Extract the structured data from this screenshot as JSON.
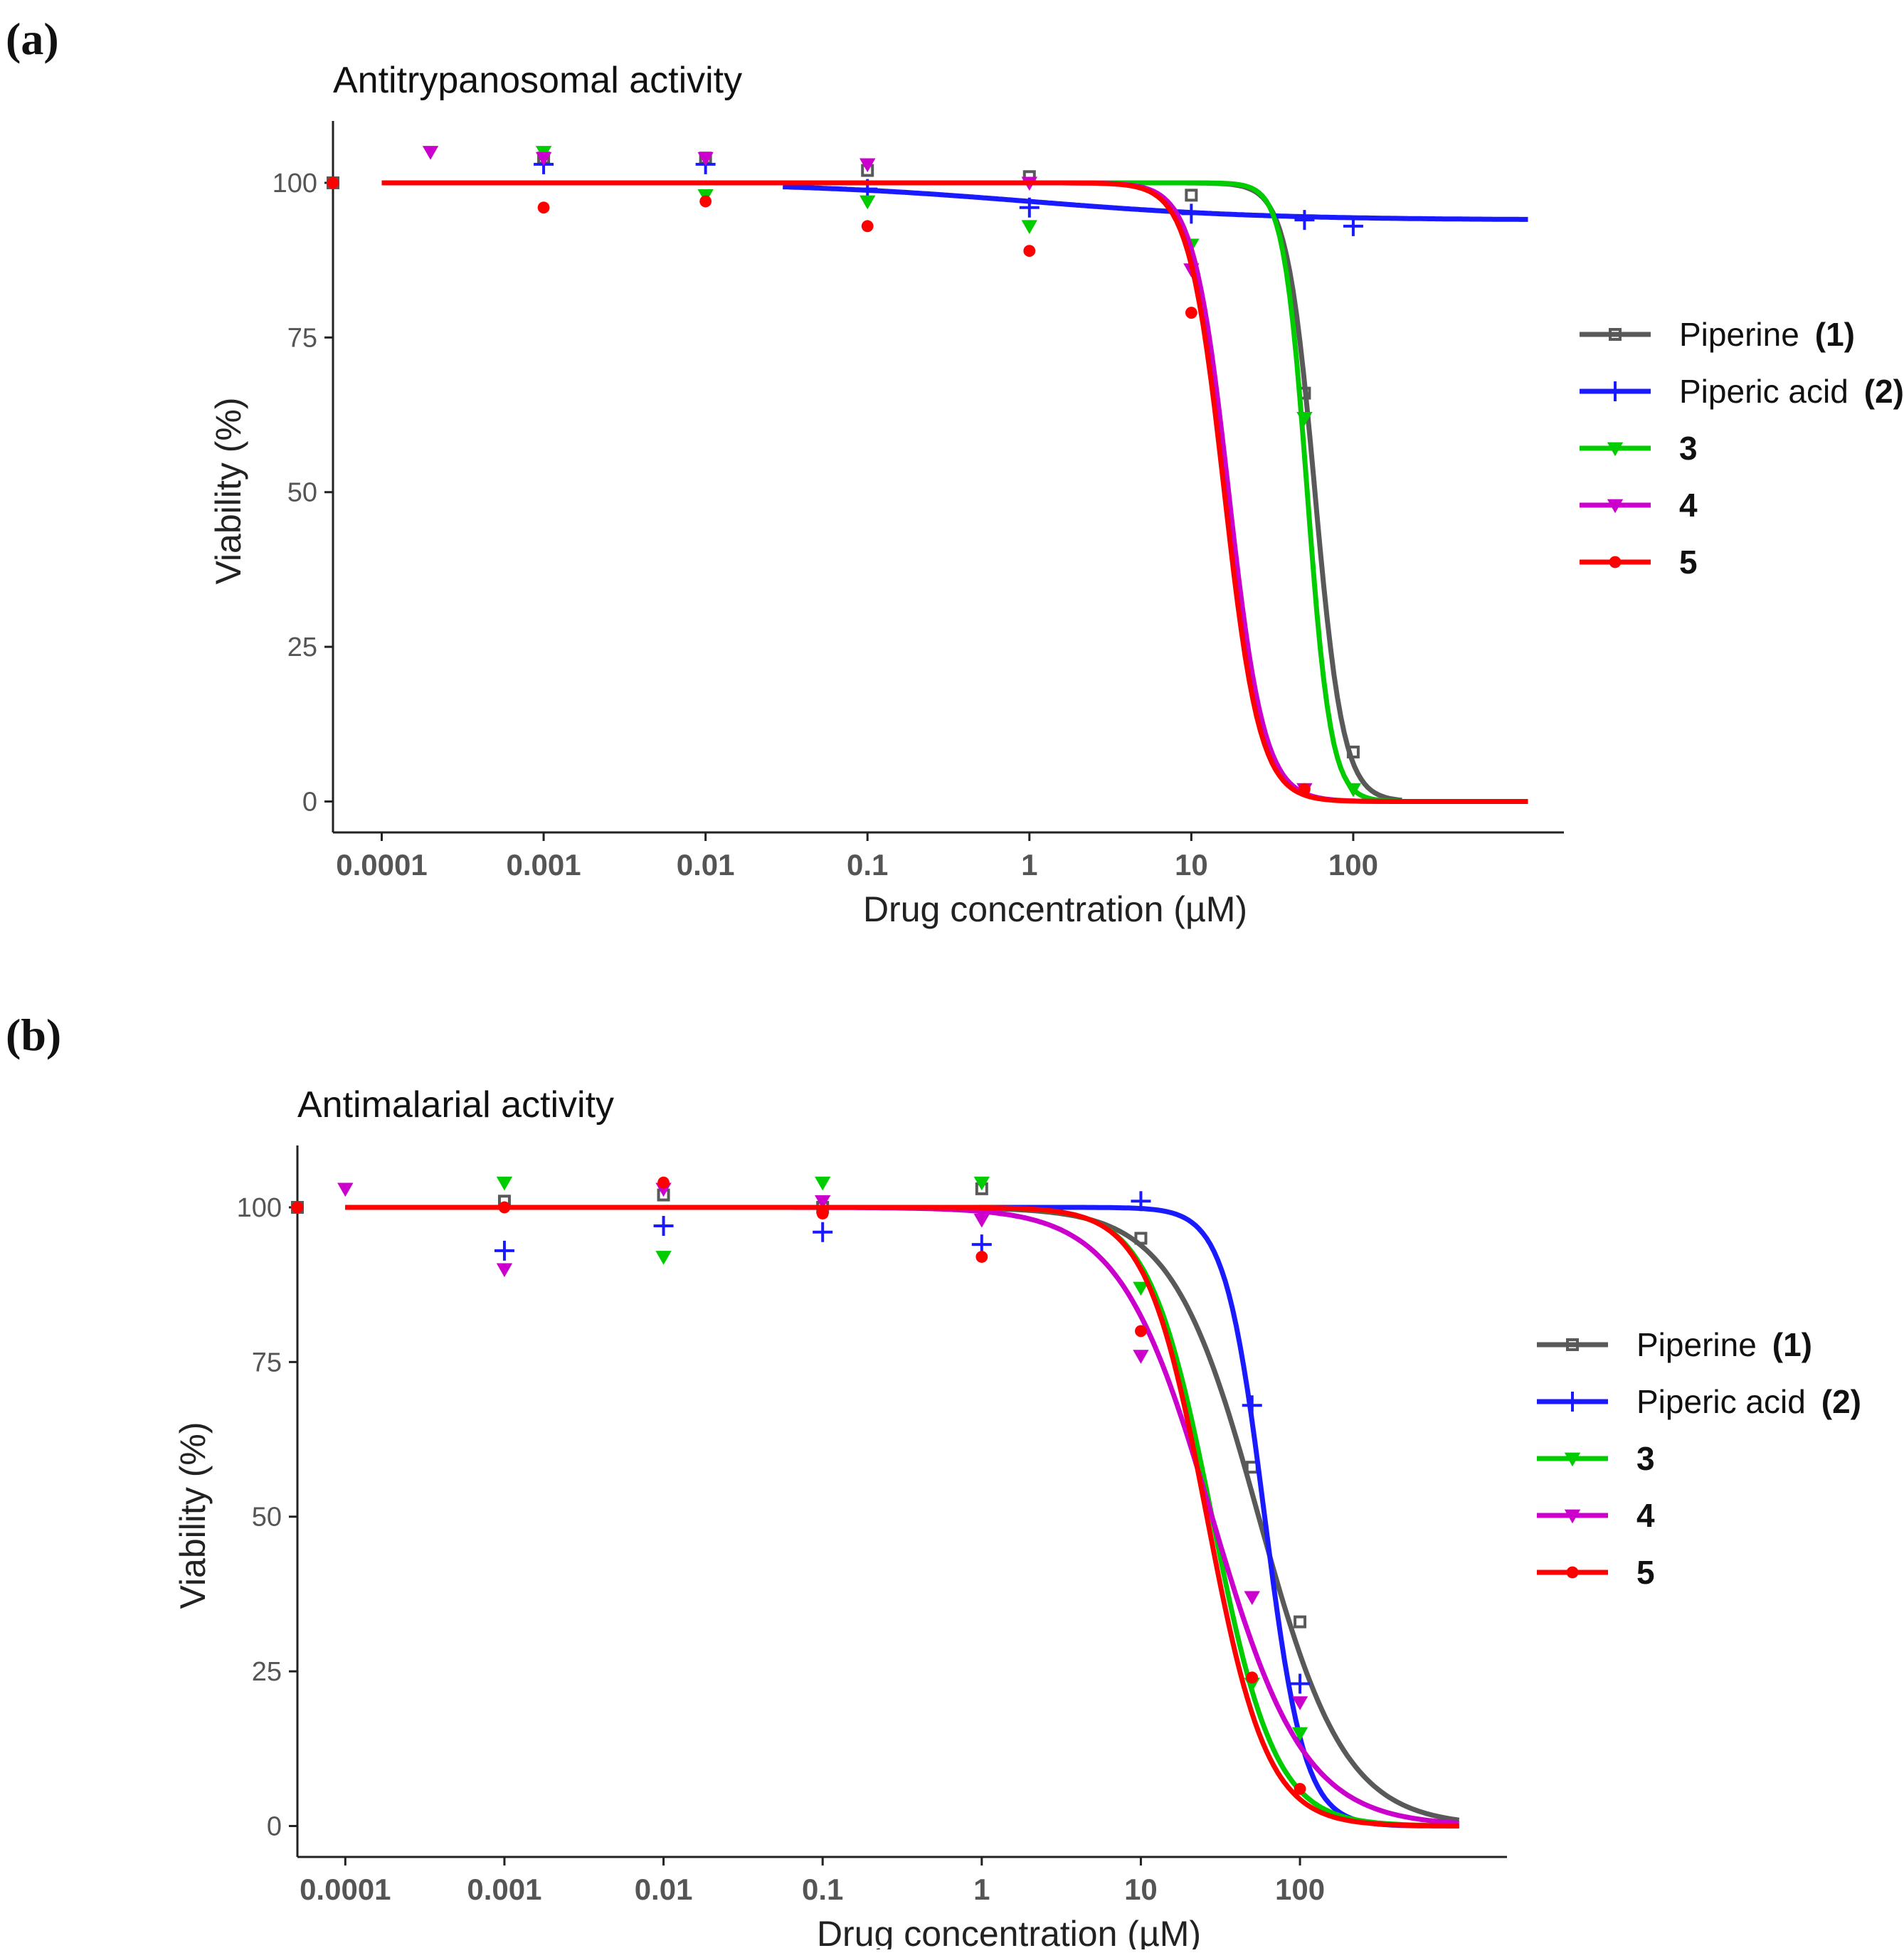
{
  "figure": {
    "panels": [
      {
        "tag": "(a)"
      },
      {
        "tag": "(b)"
      }
    ]
  },
  "chart_data": [
    {
      "type": "line",
      "title": "Antitrypanosomal activity",
      "xlabel": "Drug concentration  (µM)",
      "ylabel": "Viability (%)",
      "xscale": "log10",
      "xlim": [
        5e-05,
        2000
      ],
      "ylim": [
        -5,
        110
      ],
      "xticks": [
        {
          "value": 0.0001,
          "label": "0.0001"
        },
        {
          "value": 0.001,
          "label": "0.001"
        },
        {
          "value": 0.01,
          "label": "0.01"
        },
        {
          "value": 0.1,
          "label": "0.1"
        },
        {
          "value": 1,
          "label": "1"
        },
        {
          "value": 10,
          "label": "10"
        },
        {
          "value": 100,
          "label": "100"
        }
      ],
      "yticks": [
        0,
        25,
        50,
        75,
        100
      ],
      "grid": false,
      "legend_position": "right",
      "series": [
        {
          "name": "Piperine",
          "id": "(1)",
          "color": "#595959",
          "marker": "square",
          "curve": {
            "top": 100,
            "bottom": 0,
            "ic50": 58,
            "hill": 5,
            "x_range": [
              0.0001,
              200
            ]
          },
          "points": [
            [
              5e-05,
              100
            ],
            [
              0.001,
              104
            ],
            [
              0.01,
              104
            ],
            [
              0.1,
              102
            ],
            [
              1,
              101
            ],
            [
              10,
              98
            ],
            [
              50,
              66
            ],
            [
              100,
              8
            ]
          ]
        },
        {
          "name": "Piperic acid",
          "id": "(2)",
          "color": "#1a1aff",
          "marker": "plus",
          "curve": {
            "top": 100,
            "bottom": 94,
            "ic50": 1,
            "hill": 0.6,
            "x_range": [
              0.03,
              1200
            ]
          },
          "points": [
            [
              0.001,
              103
            ],
            [
              0.01,
              103
            ],
            [
              0.1,
              99
            ],
            [
              1,
              96
            ],
            [
              10,
              95
            ],
            [
              50,
              94
            ],
            [
              100,
              93
            ]
          ]
        },
        {
          "name": "3",
          "id": "",
          "color": "#00cc00",
          "marker": "triangle-down",
          "curve": {
            "top": 100,
            "bottom": 0,
            "ic50": 52,
            "hill": 6,
            "x_range": [
              0.0001,
              200
            ]
          },
          "points": [
            [
              0.001,
              105
            ],
            [
              0.01,
              98
            ],
            [
              0.1,
              97
            ],
            [
              1,
              93
            ],
            [
              10,
              90
            ],
            [
              50,
              62
            ],
            [
              100,
              2
            ]
          ]
        },
        {
          "name": "4",
          "id": "",
          "color": "#cc00cc",
          "marker": "triangle-down",
          "curve": {
            "top": 100,
            "bottom": 0,
            "ic50": 17,
            "hill": 4,
            "x_range": [
              0.0001,
              200
            ]
          },
          "points": [
            [
              0.0002,
              105
            ],
            [
              0.001,
              104
            ],
            [
              0.01,
              104
            ],
            [
              0.1,
              103
            ],
            [
              1,
              100
            ],
            [
              10,
              86
            ],
            [
              50,
              2
            ]
          ]
        },
        {
          "name": "5",
          "id": "",
          "color": "#ff0000",
          "marker": "circle",
          "curve": {
            "top": 100,
            "bottom": 0,
            "ic50": 16,
            "hill": 4,
            "x_range": [
              0.0001,
              1200
            ]
          },
          "points": [
            [
              5e-05,
              100
            ],
            [
              0.001,
              96
            ],
            [
              0.01,
              97
            ],
            [
              0.1,
              93
            ],
            [
              1,
              89
            ],
            [
              10,
              79
            ],
            [
              50,
              2
            ]
          ]
        }
      ]
    },
    {
      "type": "line",
      "title": "Antimalarial activity",
      "xlabel": "Drug concentration  (µM)",
      "ylabel": "Viability (%)",
      "xscale": "log10",
      "xlim": [
        5e-05,
        2000
      ],
      "ylim": [
        -5,
        110
      ],
      "xticks": [
        {
          "value": 0.0001,
          "label": "0.0001"
        },
        {
          "value": 0.001,
          "label": "0.001"
        },
        {
          "value": 0.01,
          "label": "0.01"
        },
        {
          "value": 0.1,
          "label": "0.1"
        },
        {
          "value": 1,
          "label": "1"
        },
        {
          "value": 10,
          "label": "10"
        },
        {
          "value": 100,
          "label": "100"
        }
      ],
      "yticks": [
        0,
        25,
        50,
        75,
        100
      ],
      "grid": false,
      "legend_position": "right",
      "series": [
        {
          "name": "Piperine",
          "id": "(1)",
          "color": "#595959",
          "marker": "square",
          "curve": {
            "top": 100,
            "bottom": 0,
            "ic50": 55,
            "hill": 1.6,
            "x_range": [
              0.0001,
              1000
            ]
          },
          "points": [
            [
              5e-05,
              100
            ],
            [
              0.001,
              101
            ],
            [
              0.01,
              102
            ],
            [
              0.1,
              100
            ],
            [
              1,
              103
            ],
            [
              10,
              95
            ],
            [
              50,
              58
            ],
            [
              100,
              33
            ]
          ]
        },
        {
          "name": "Piperic acid",
          "id": "(2)",
          "color": "#1a1aff",
          "marker": "plus",
          "curve": {
            "top": 100,
            "bottom": 0,
            "ic50": 60,
            "hill": 3.5,
            "x_range": [
              0.0001,
              1000
            ]
          },
          "points": [
            [
              0.001,
              93
            ],
            [
              0.01,
              97
            ],
            [
              0.1,
              96
            ],
            [
              1,
              94
            ],
            [
              10,
              101
            ],
            [
              50,
              68
            ],
            [
              100,
              23
            ]
          ]
        },
        {
          "name": "3",
          "id": "",
          "color": "#00cc00",
          "marker": "triangle-down",
          "curve": {
            "top": 100,
            "bottom": 0,
            "ic50": 28,
            "hill": 2.2,
            "x_range": [
              0.0001,
              1000
            ]
          },
          "points": [
            [
              0.001,
              104
            ],
            [
              0.01,
              92
            ],
            [
              0.1,
              104
            ],
            [
              1,
              104
            ],
            [
              10,
              87
            ],
            [
              50,
              23
            ],
            [
              100,
              15
            ]
          ]
        },
        {
          "name": "4",
          "id": "",
          "color": "#cc00cc",
          "marker": "triangle-down",
          "curve": {
            "top": 100,
            "bottom": 0,
            "ic50": 28,
            "hill": 1.5,
            "x_range": [
              0.0001,
              1000
            ]
          },
          "points": [
            [
              0.0001,
              103
            ],
            [
              0.001,
              90
            ],
            [
              0.01,
              103
            ],
            [
              0.1,
              101
            ],
            [
              1,
              98
            ],
            [
              10,
              76
            ],
            [
              50,
              37
            ],
            [
              100,
              20
            ]
          ]
        },
        {
          "name": "5",
          "id": "",
          "color": "#ff0000",
          "marker": "circle",
          "curve": {
            "top": 100,
            "bottom": 0,
            "ic50": 26,
            "hill": 2.3,
            "x_range": [
              0.0001,
              1000
            ]
          },
          "points": [
            [
              5e-05,
              100
            ],
            [
              0.001,
              100
            ],
            [
              0.01,
              104
            ],
            [
              0.1,
              99
            ],
            [
              1,
              92
            ],
            [
              10,
              80
            ],
            [
              50,
              24
            ],
            [
              100,
              6
            ]
          ]
        }
      ]
    }
  ]
}
